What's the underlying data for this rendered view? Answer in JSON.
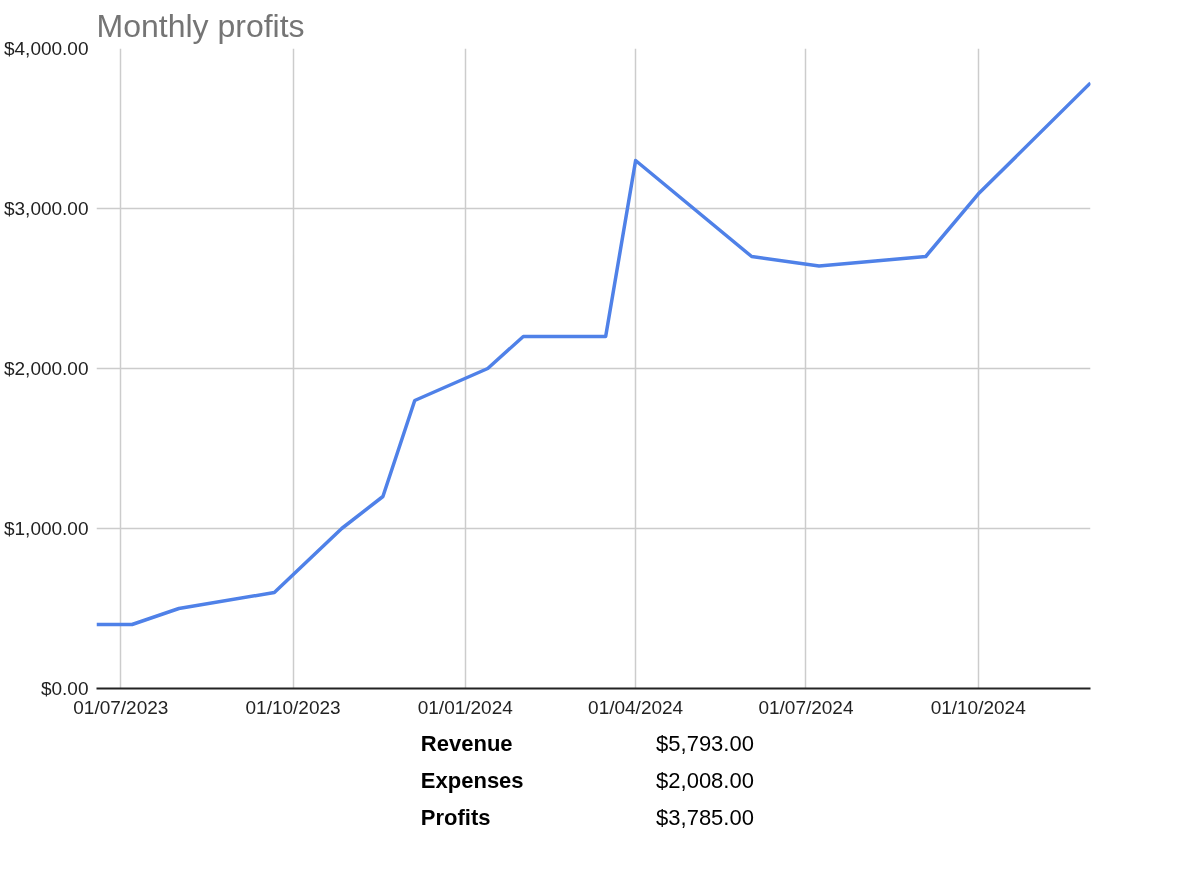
{
  "chart_data": {
    "type": "line",
    "title": "Monthly profits",
    "x": [
      "2023-06-18",
      "2023-07-07",
      "2023-08-01",
      "2023-09-21",
      "2023-10-27",
      "2023-11-18",
      "2023-12-05",
      "2024-01-13",
      "2024-02-01",
      "2024-03-16",
      "2024-04-01",
      "2024-06-02",
      "2024-07-08",
      "2024-09-03",
      "2024-10-01",
      "2024-11-30"
    ],
    "series": [
      {
        "color": "#4f81e8",
        "values": [
          400,
          400,
          500,
          600,
          1000,
          1200,
          1800,
          2000,
          2200,
          2200,
          3300,
          2700,
          2640,
          2700,
          3090,
          3785
        ]
      }
    ],
    "xlim": [
      "2023-06-18",
      "2024-11-30"
    ],
    "xticks": [
      {
        "value": "2023-07-01",
        "label": "01/07/2023"
      },
      {
        "value": "2023-10-01",
        "label": "01/10/2023"
      },
      {
        "value": "2024-01-01",
        "label": "01/01/2024"
      },
      {
        "value": "2024-04-01",
        "label": "01/04/2024"
      },
      {
        "value": "2024-07-01",
        "label": "01/07/2024"
      },
      {
        "value": "2024-10-01",
        "label": "01/10/2024"
      }
    ],
    "ylim": [
      0,
      4000
    ],
    "yticks": [
      {
        "value": 0,
        "label": "$0.00"
      },
      {
        "value": 1000,
        "label": "$1,000.00"
      },
      {
        "value": 2000,
        "label": "$2,000.00"
      },
      {
        "value": 3000,
        "label": "$3,000.00"
      },
      {
        "value": 4000,
        "label": "$4,000.00"
      }
    ],
    "grid": true,
    "line_style": "solid",
    "annotations": [
      "Revenue",
      "$5,793.00",
      "Expenses",
      "$2,008.00",
      "Profits",
      "$3,785.00"
    ]
  }
}
